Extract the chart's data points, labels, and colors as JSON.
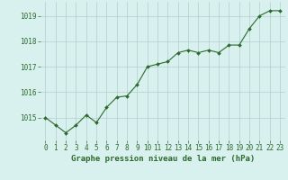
{
  "x": [
    0,
    1,
    2,
    3,
    4,
    5,
    6,
    7,
    8,
    9,
    10,
    11,
    12,
    13,
    14,
    15,
    16,
    17,
    18,
    19,
    20,
    21,
    22,
    23
  ],
  "y": [
    1015.0,
    1014.7,
    1014.4,
    1014.7,
    1015.1,
    1014.8,
    1015.4,
    1015.8,
    1015.85,
    1016.3,
    1017.0,
    1017.1,
    1017.2,
    1017.55,
    1017.65,
    1017.55,
    1017.65,
    1017.55,
    1017.85,
    1017.85,
    1018.5,
    1019.0,
    1019.2,
    1019.2
  ],
  "line_color": "#2d6a2d",
  "marker": "D",
  "marker_size": 2.0,
  "line_width": 0.8,
  "background_color": "#d8f0ee",
  "grid_color": "#b0cece",
  "xlabel": "Graphe pression niveau de la mer (hPa)",
  "xlabel_color": "#2d6a2d",
  "xlabel_fontsize": 6.5,
  "tick_color": "#2d6a2d",
  "tick_fontsize": 5.5,
  "ylim": [
    1014.1,
    1019.55
  ],
  "yticks": [
    1015,
    1016,
    1017,
    1018,
    1019
  ],
  "xlim": [
    -0.5,
    23.5
  ],
  "xticks": [
    0,
    1,
    2,
    3,
    4,
    5,
    6,
    7,
    8,
    9,
    10,
    11,
    12,
    13,
    14,
    15,
    16,
    17,
    18,
    19,
    20,
    21,
    22,
    23
  ]
}
